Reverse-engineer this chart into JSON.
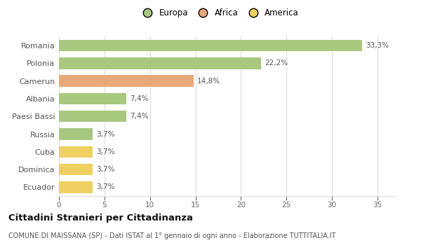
{
  "categories": [
    "Romania",
    "Polonia",
    "Camerun",
    "Albania",
    "Paesi Bassi",
    "Russia",
    "Cuba",
    "Dominica",
    "Ecuador"
  ],
  "values": [
    33.3,
    22.2,
    14.8,
    7.4,
    7.4,
    3.7,
    3.7,
    3.7,
    3.7
  ],
  "labels": [
    "33,3%",
    "22,2%",
    "14,8%",
    "7,4%",
    "7,4%",
    "3,7%",
    "3,7%",
    "3,7%",
    "3,7%"
  ],
  "colors": [
    "#a8c880",
    "#a8c880",
    "#e8a878",
    "#a8c880",
    "#a8c880",
    "#a8c880",
    "#f0d060",
    "#f0d060",
    "#f0d060"
  ],
  "legend": [
    {
      "label": "Europa",
      "color": "#a8c880"
    },
    {
      "label": "Africa",
      "color": "#e8a878"
    },
    {
      "label": "America",
      "color": "#f0d060"
    }
  ],
  "xlim": [
    0,
    37
  ],
  "xticks": [
    0,
    5,
    10,
    15,
    20,
    25,
    30,
    35
  ],
  "title": "Cittadini Stranieri per Cittadinanza",
  "subtitle": "COMUNE DI MAISSANA (SP) - Dati ISTAT al 1° gennaio di ogni anno - Elaborazione TUTTITALIA.IT",
  "background_color": "#ffffff",
  "grid_color": "#dddddd",
  "bar_height": 0.65
}
